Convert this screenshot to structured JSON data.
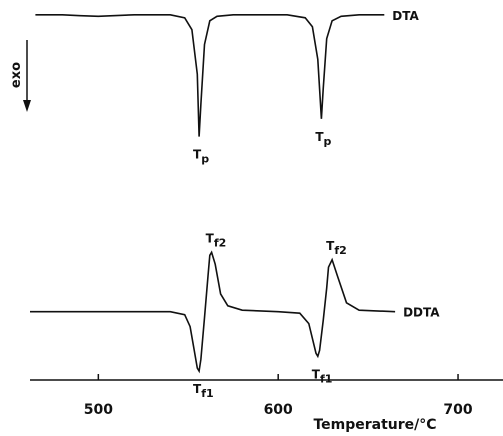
{
  "chart_data": {
    "type": "line",
    "x_label": "Temperature/°C",
    "y_label": "exo",
    "xlim": [
      462,
      725
    ],
    "ylim": [
      -2.3,
      10.5
    ],
    "xticks": [
      500,
      600,
      700
    ],
    "series": [
      {
        "name": "DTA",
        "color": "#111111",
        "x": [
          465,
          480,
          490,
          500,
          520,
          540,
          548,
          552,
          555,
          556,
          557,
          559,
          562,
          566,
          575,
          590,
          605,
          615,
          619,
          622,
          624,
          625,
          627,
          630,
          635,
          645,
          659
        ],
        "values": [
          10,
          10,
          9.97,
          9.95,
          10,
          10,
          9.9,
          9.5,
          8.0,
          5.9,
          7.0,
          9.0,
          9.8,
          9.95,
          10,
          10,
          10,
          9.9,
          9.6,
          8.5,
          6.5,
          7.5,
          9.2,
          9.8,
          9.95,
          10,
          10
        ]
      },
      {
        "name": "DDTA",
        "color": "#111111",
        "x": [
          462,
          540,
          548,
          551,
          553,
          555,
          556,
          557,
          559,
          561,
          562,
          563,
          565,
          568,
          572,
          580,
          600,
          612,
          617,
          619,
          621,
          622,
          623,
          625,
          627,
          628,
          630,
          633,
          638,
          645,
          665
        ],
        "values": [
          0,
          0,
          -0.1,
          -0.5,
          -1.2,
          -1.9,
          -2.0,
          -1.6,
          -0.2,
          1.2,
          1.9,
          2.0,
          1.6,
          0.6,
          0.2,
          0.05,
          0,
          -0.05,
          -0.4,
          -0.9,
          -1.4,
          -1.5,
          -1.3,
          -0.3,
          0.8,
          1.5,
          1.75,
          1.2,
          0.3,
          0.05,
          0
        ]
      }
    ],
    "annotations": [
      {
        "text": "T",
        "subscript": "p",
        "x": 556,
        "y": 5.9,
        "side": "below"
      },
      {
        "text": "T",
        "subscript": "p",
        "x": 624,
        "y": 6.5,
        "side": "below"
      },
      {
        "text": "T",
        "subscript": "f1",
        "x": 556,
        "y": -2.0,
        "side": "below"
      },
      {
        "text": "T",
        "subscript": "f2",
        "x": 563,
        "y": 2.0,
        "side": "above"
      },
      {
        "text": "T",
        "subscript": "f1",
        "x": 622,
        "y": -1.5,
        "side": "below"
      },
      {
        "text": "T",
        "subscript": "f2",
        "x": 630,
        "y": 1.75,
        "side": "above"
      }
    ]
  }
}
